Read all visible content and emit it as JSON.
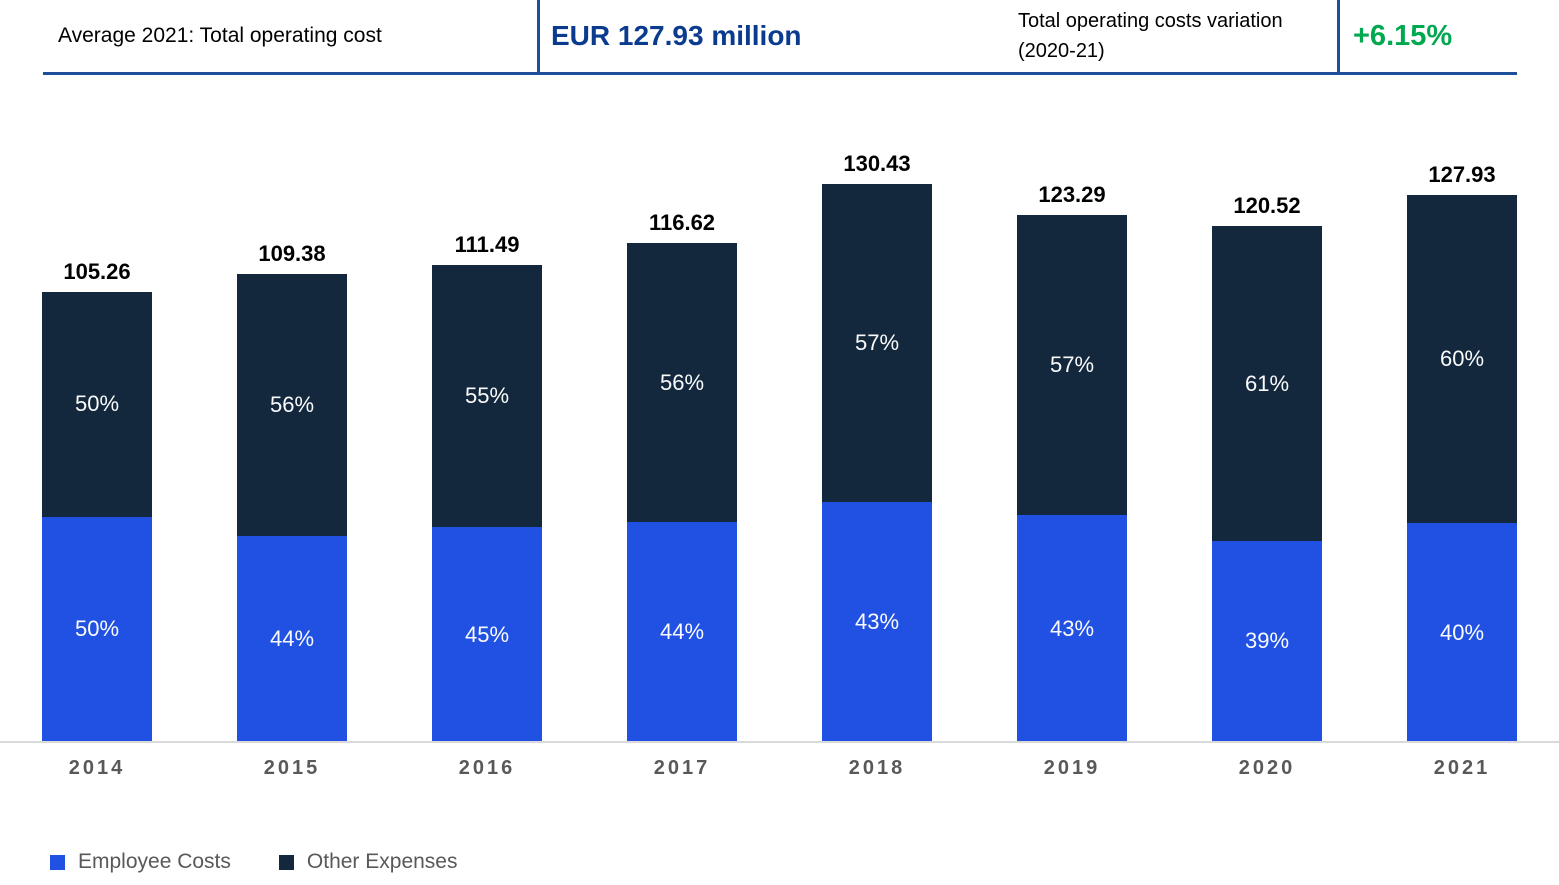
{
  "header": {
    "left_label": "Average 2021: Total operating cost",
    "total_value": "EUR 127.93 million",
    "variation_label": "Total operating costs variation (2020-21)",
    "variation_value": "+6.15%",
    "value_color": "#0B3B8F",
    "variation_color": "#00A84F",
    "rule_color": "#1F4E9B"
  },
  "chart_data": {
    "type": "bar",
    "stacked": true,
    "categories": [
      "2014",
      "2015",
      "2016",
      "2017",
      "2018",
      "2019",
      "2020",
      "2021"
    ],
    "totals": [
      105.26,
      109.38,
      111.49,
      116.62,
      130.43,
      123.29,
      120.52,
      127.93
    ],
    "series": [
      {
        "name": "Employee Costs",
        "color": "#2151E2",
        "percent": [
          50,
          44,
          45,
          44,
          43,
          43,
          39,
          40
        ]
      },
      {
        "name": "Other Expenses",
        "color": "#13283C",
        "percent": [
          50,
          56,
          55,
          56,
          57,
          57,
          61,
          60
        ]
      }
    ],
    "segment_label_suffix": "%",
    "total_label_decimals": 2,
    "legend_position": "bottom-left",
    "gridlines": false,
    "axis_line_color": "#D9D9D9",
    "category_label_color": "#595959"
  }
}
